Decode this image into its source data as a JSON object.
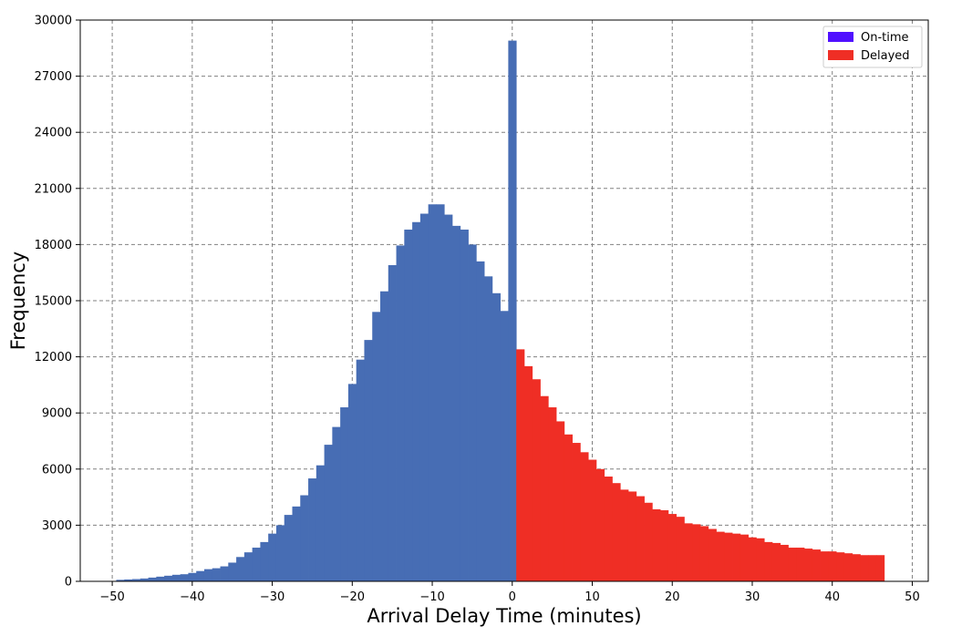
{
  "chart_data": {
    "type": "bar",
    "xlabel": "Arrival Delay Time (minutes)",
    "ylabel": "Frequency",
    "xlim": [
      -54,
      52
    ],
    "ylim": [
      0,
      30000
    ],
    "xticks": [
      -50,
      -40,
      -30,
      -20,
      -10,
      0,
      10,
      20,
      30,
      40,
      50
    ],
    "yticks": [
      0,
      3000,
      6000,
      9000,
      12000,
      15000,
      18000,
      21000,
      24000,
      27000,
      30000
    ],
    "grid": true,
    "legend_position": "top-right",
    "legend": [
      {
        "label": "On-time",
        "color": "#5010ff"
      },
      {
        "label": "Delayed",
        "color": "#ef2e25"
      }
    ],
    "bin_width": 1,
    "series": [
      {
        "color": "#476db4",
        "x": [
          -49,
          -48,
          -47,
          -46,
          -45,
          -44,
          -43,
          -42,
          -41,
          -40,
          -39,
          -38,
          -37,
          -36,
          -35,
          -34,
          -33,
          -32,
          -31,
          -30,
          -29,
          -28,
          -27,
          -26,
          -25,
          -24,
          -23,
          -22,
          -21,
          -20,
          -19,
          -18,
          -17,
          -16,
          -15,
          -14,
          -13,
          -12,
          -11,
          -10,
          -9,
          -8,
          -7,
          -6,
          -5,
          -4,
          -3,
          -2,
          -1,
          0
        ],
        "values": [
          80,
          100,
          120,
          150,
          200,
          250,
          300,
          350,
          380,
          450,
          550,
          650,
          700,
          800,
          1000,
          1300,
          1550,
          1800,
          2100,
          2550,
          3000,
          3550,
          4000,
          4600,
          5500,
          6200,
          7300,
          8250,
          9300,
          10550,
          11850,
          12900,
          14400,
          15500,
          16900,
          17950,
          18800,
          19200,
          19650,
          20150,
          20150,
          19600,
          19000,
          18800,
          18000,
          17100,
          16300,
          15400,
          14450,
          28900
        ]
      },
      {
        "color": "#ef2e25",
        "x": [
          1,
          2,
          3,
          4,
          5,
          6,
          7,
          8,
          9,
          10,
          11,
          12,
          13,
          14,
          15,
          16,
          17,
          18,
          19,
          20,
          21,
          22,
          23,
          24,
          25,
          26,
          27,
          28,
          29,
          30,
          31,
          32,
          33,
          34,
          35,
          36,
          37,
          38,
          39,
          40,
          41,
          42,
          43,
          44,
          45,
          46
        ],
        "values": [
          12400,
          11500,
          10800,
          9900,
          9300,
          8550,
          7850,
          7400,
          6900,
          6500,
          6000,
          5600,
          5250,
          4900,
          4800,
          4550,
          4200,
          3850,
          3800,
          3600,
          3450,
          3100,
          3050,
          2950,
          2800,
          2650,
          2600,
          2550,
          2500,
          2350,
          2300,
          2100,
          2050,
          1950,
          1800,
          1800,
          1750,
          1700,
          1600,
          1600,
          1550,
          1500,
          1450,
          1400,
          1400,
          1400
        ]
      }
    ]
  }
}
